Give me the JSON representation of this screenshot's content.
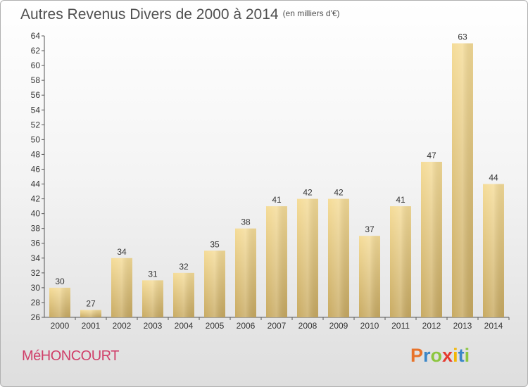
{
  "title": "Autres Revenus Divers de 2000 à 2014",
  "title_unit": "(en milliers d'€)",
  "location": "MéHONCOURT",
  "logo": {
    "text": "Proxiti",
    "letters": [
      "P",
      "r",
      "o",
      "x",
      "i",
      "t",
      "i"
    ],
    "colors": [
      "#e8732a",
      "#3a86c8",
      "#8cc63f",
      "#e53a2f",
      "#f2b705",
      "#3a86c8",
      "#8cc63f"
    ]
  },
  "colors": {
    "bar_light": "#f5dc98",
    "bar_dark": "#c8aa62",
    "location": "#d0406a"
  },
  "chart_data": {
    "type": "bar",
    "title": "Autres Revenus Divers de 2000 à 2014",
    "subtitle": "(en milliers d'€)",
    "categories": [
      "2000",
      "2001",
      "2002",
      "2003",
      "2004",
      "2005",
      "2006",
      "2007",
      "2008",
      "2009",
      "2010",
      "2011",
      "2012",
      "2013",
      "2014"
    ],
    "values": [
      30,
      27,
      34,
      31,
      32,
      35,
      38,
      41,
      42,
      42,
      37,
      41,
      47,
      63,
      44
    ],
    "ylim": [
      26,
      64
    ],
    "yticks": [
      26,
      28,
      30,
      32,
      34,
      36,
      38,
      40,
      42,
      44,
      46,
      48,
      50,
      52,
      54,
      56,
      58,
      60,
      62,
      64
    ],
    "grid": false,
    "xlabel": "",
    "ylabel": ""
  }
}
